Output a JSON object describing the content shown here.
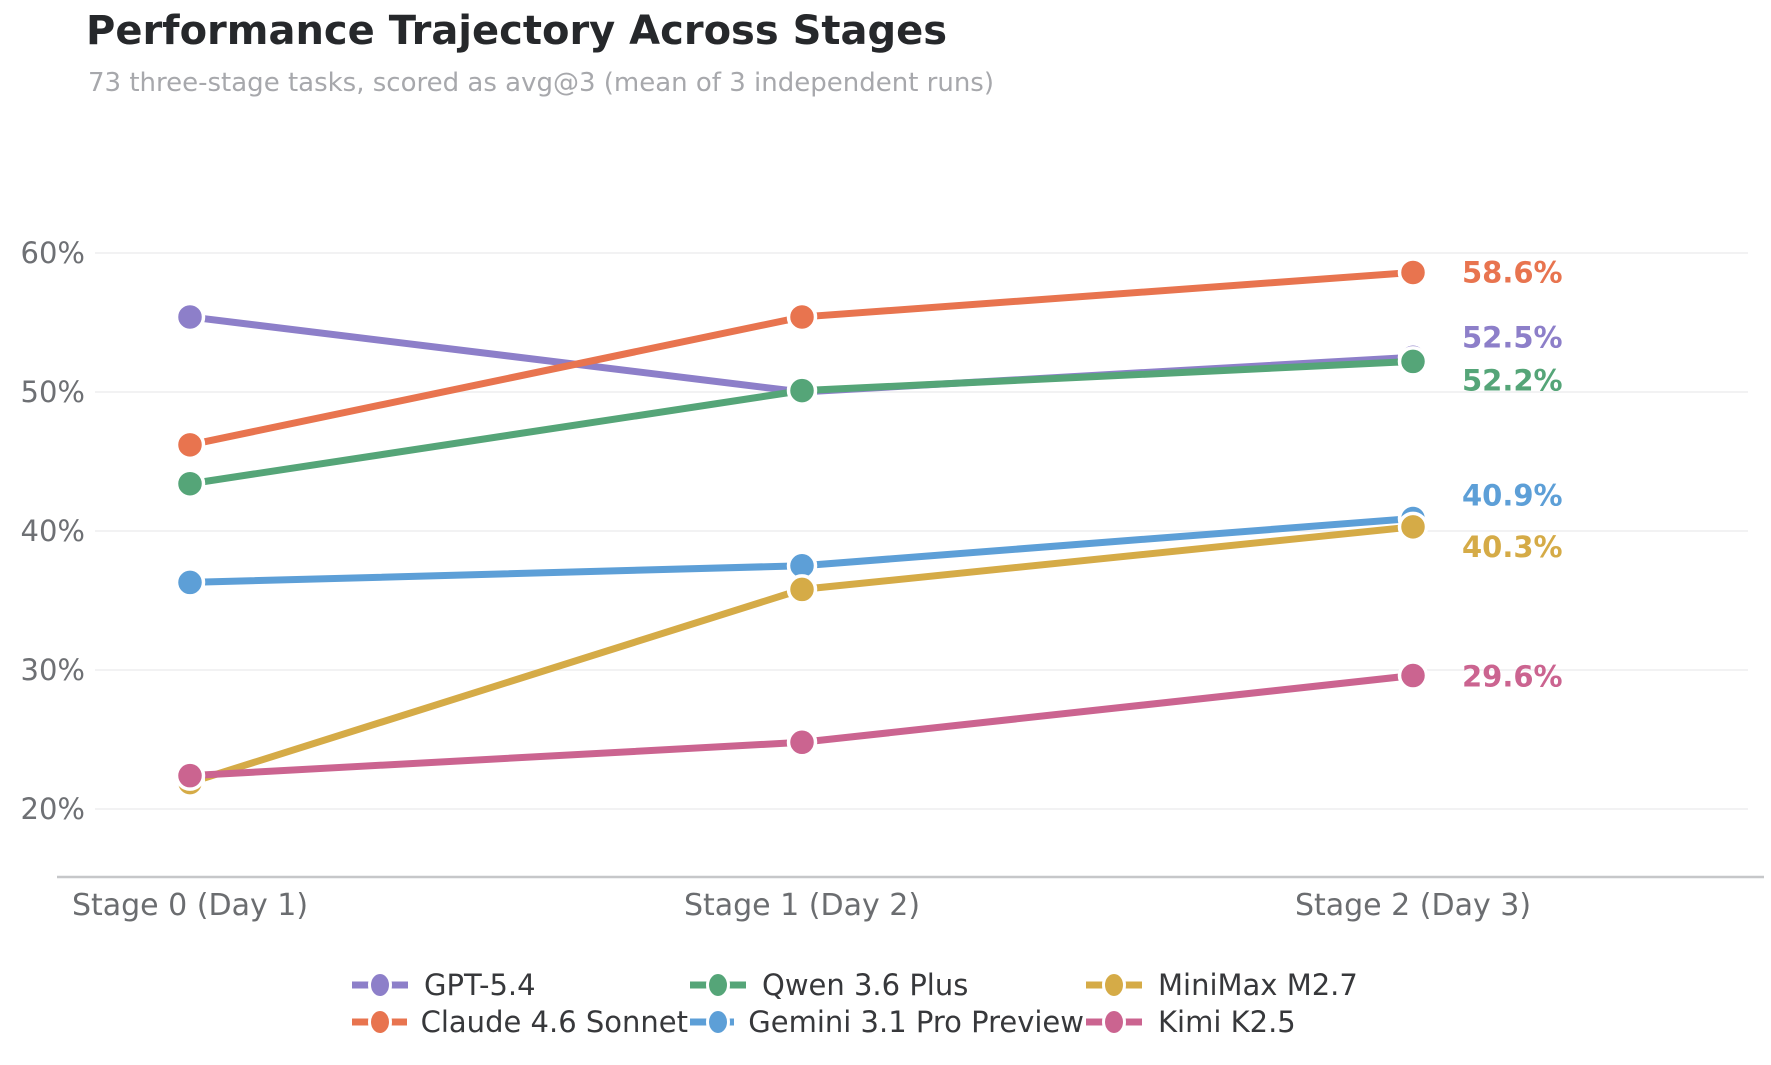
{
  "header": {
    "title": "Performance Trajectory Across Stages",
    "subtitle": "73 three-stage tasks, scored as avg@3 (mean of 3 independent runs)"
  },
  "chart_data": {
    "type": "line",
    "title": "Performance Trajectory Across Stages",
    "subtitle": "73 three-stage tasks, scored as avg@3 (mean of 3 independent runs)",
    "categories": [
      "Stage 0 (Day 1)",
      "Stage 1 (Day 2)",
      "Stage 2 (Day 3)"
    ],
    "y_axis": {
      "unit": "percent",
      "tick_values": [
        60,
        50,
        40,
        30,
        20
      ],
      "tick_labels": [
        "60%",
        "50%",
        "40%",
        "30%",
        "20%"
      ],
      "range_shown": [
        15,
        65
      ],
      "grid": true
    },
    "series": [
      {
        "name": "GPT-5.4",
        "color": "#8d7fc9",
        "values": [
          55.4,
          50.0,
          52.5
        ],
        "end_label": "52.5%"
      },
      {
        "name": "Claude 4.6 Sonnet",
        "color": "#e8744f",
        "values": [
          46.2,
          55.4,
          58.6
        ],
        "end_label": "58.6%"
      },
      {
        "name": "Qwen 3.6 Plus",
        "color": "#55a578",
        "values": [
          43.4,
          50.1,
          52.2
        ],
        "end_label": "52.2%"
      },
      {
        "name": "Gemini 3.1 Pro Preview",
        "color": "#5d9fd7",
        "values": [
          36.3,
          37.5,
          40.9
        ],
        "end_label": "40.9%"
      },
      {
        "name": "MiniMax M2.7",
        "color": "#d5ab47",
        "values": [
          21.9,
          35.8,
          40.3
        ],
        "end_label": "40.3%"
      },
      {
        "name": "Kimi K2.5",
        "color": "#cb6490",
        "values": [
          22.4,
          24.8,
          29.6
        ],
        "end_label": "29.6%"
      }
    ],
    "legend": {
      "position": "bottom",
      "columns": 3,
      "fill": "column-major",
      "entries": [
        "GPT-5.4",
        "Claude 4.6 Sonnet",
        "Qwen 3.6 Plus",
        "Gemini 3.1 Pro Preview",
        "MiniMax M2.7",
        "Kimi K2.5"
      ]
    },
    "layout_hints": {
      "end_label_dy": [
        -20,
        0,
        19,
        -23,
        20,
        1
      ],
      "grid_color": "#ededef",
      "axis_color": "#c6c7c9"
    }
  }
}
